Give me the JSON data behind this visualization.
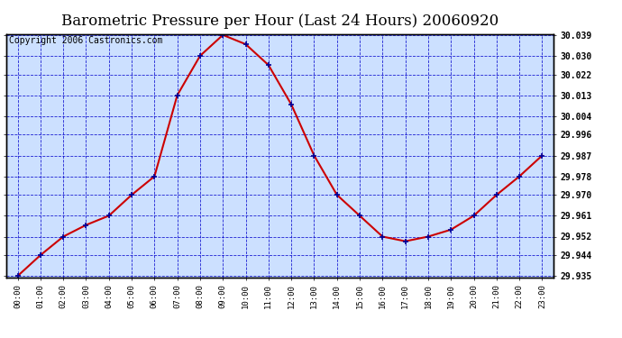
{
  "title": "Barometric Pressure per Hour (Last 24 Hours) 20060920",
  "copyright": "Copyright 2006 Castronics.com",
  "x_labels": [
    "00:00",
    "01:00",
    "02:00",
    "03:00",
    "04:00",
    "05:00",
    "06:00",
    "07:00",
    "08:00",
    "09:00",
    "10:00",
    "11:00",
    "12:00",
    "13:00",
    "14:00",
    "15:00",
    "16:00",
    "17:00",
    "18:00",
    "19:00",
    "20:00",
    "21:00",
    "22:00",
    "23:00"
  ],
  "y_values": [
    29.935,
    29.944,
    29.952,
    29.957,
    29.961,
    29.97,
    29.978,
    30.013,
    30.03,
    30.039,
    30.035,
    30.026,
    30.009,
    29.987,
    29.97,
    29.961,
    29.952,
    29.95,
    29.952,
    29.955,
    29.961,
    29.97,
    29.978,
    29.987
  ],
  "y_min": 29.935,
  "y_max": 30.039,
  "y_ticks": [
    29.935,
    29.944,
    29.952,
    29.961,
    29.97,
    29.978,
    29.987,
    29.996,
    30.004,
    30.013,
    30.022,
    30.03,
    30.039
  ],
  "line_color": "#cc0000",
  "marker_color": "#000099",
  "bg_color": "#ffffff",
  "plot_bg": "#cce0ff",
  "grid_color": "#0000cc",
  "border_color": "#000000",
  "title_fontsize": 12,
  "copyright_fontsize": 7
}
